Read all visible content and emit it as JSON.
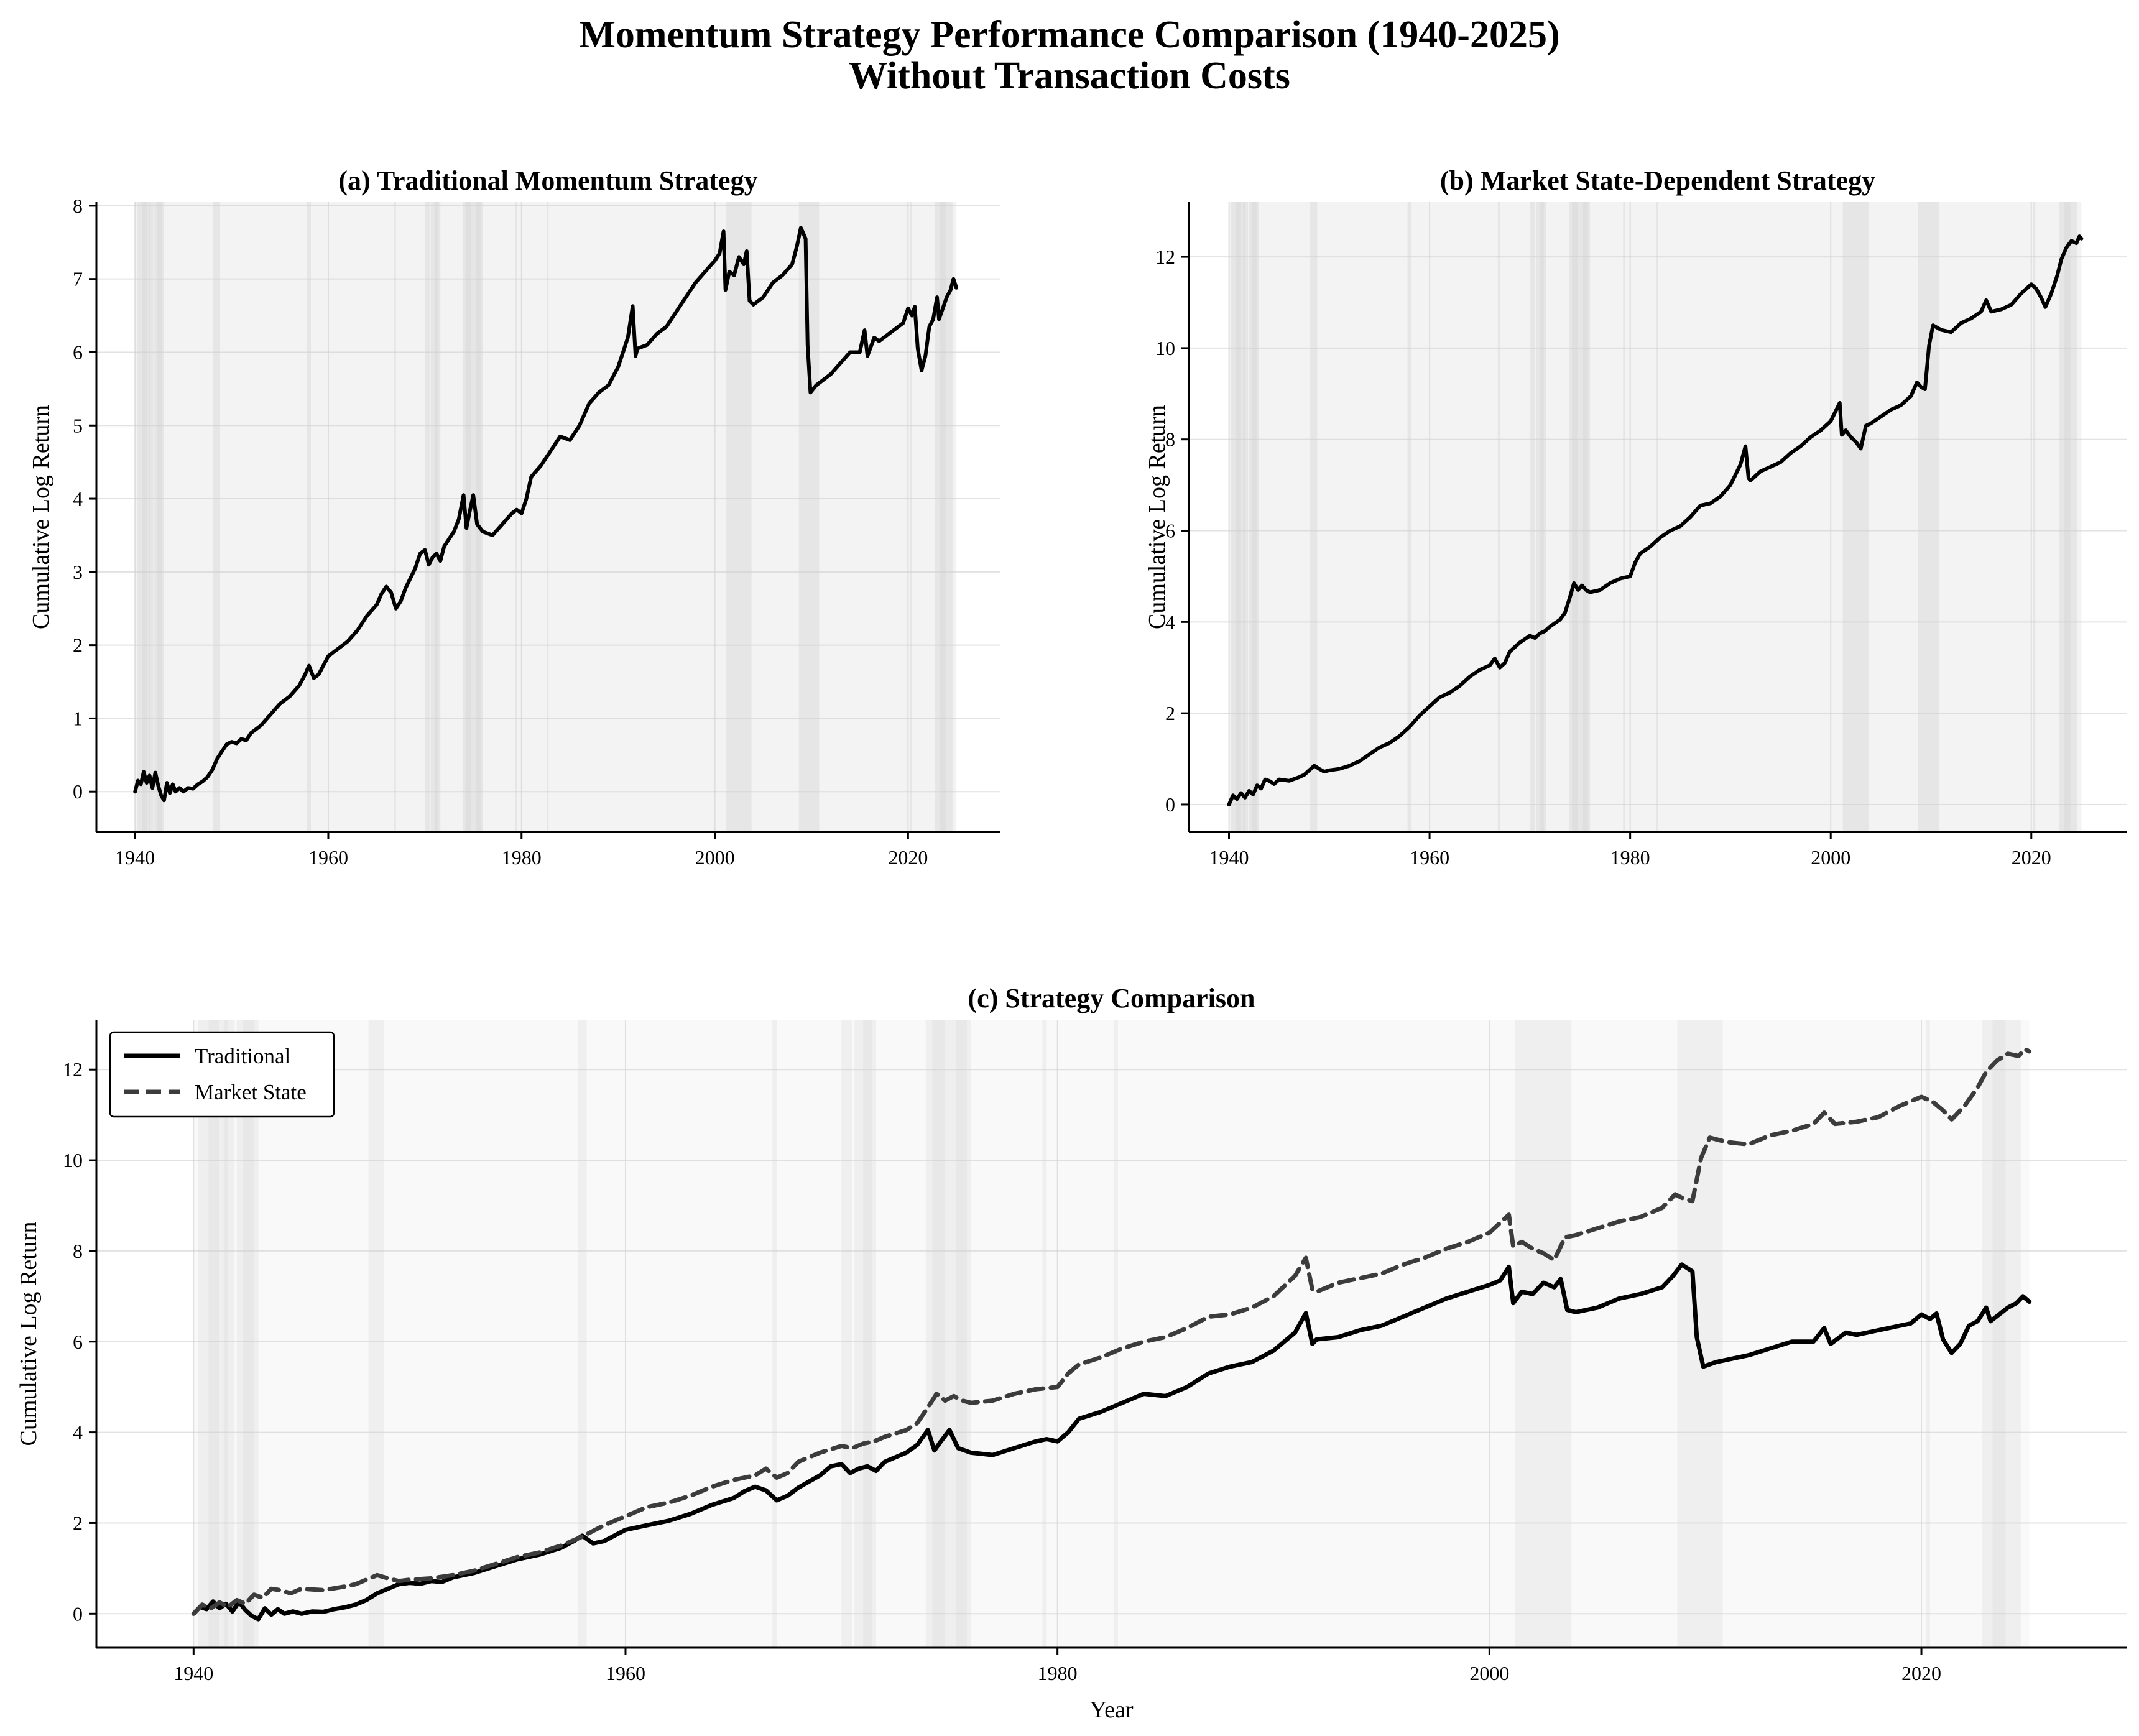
{
  "figure": {
    "title_line1": "Momentum Strategy Performance Comparison (1940-2025)",
    "title_line2": "Without Transaction Costs"
  },
  "chart_data": [
    {
      "id": "a",
      "type": "line",
      "title": "(a) Traditional Momentum Strategy",
      "xlabel": "",
      "ylabel": "Cumulative Log Return",
      "xlim": [
        1936,
        2029.5
      ],
      "ylim": [
        -0.55,
        8.05
      ],
      "xticks": [
        1940,
        1960,
        1980,
        2000,
        2020
      ],
      "yticks": [
        0,
        1,
        2,
        3,
        4,
        5,
        6,
        7,
        8
      ],
      "grid": true,
      "legend": "none",
      "series_keys": [
        "traditional"
      ],
      "colors": [
        "#000000"
      ]
    },
    {
      "id": "b",
      "type": "line",
      "title": "(b) Market State-Dependent Strategy",
      "xlabel": "",
      "ylabel": "Cumulative Log Return",
      "xlim": [
        1936,
        2029.5
      ],
      "ylim": [
        -0.6,
        13.2
      ],
      "xticks": [
        1940,
        1960,
        1980,
        2000,
        2020
      ],
      "yticks": [
        0,
        2,
        4,
        6,
        8,
        10,
        12
      ],
      "grid": true,
      "legend": "none",
      "series_keys": [
        "market_state"
      ],
      "colors": [
        "#000000"
      ]
    },
    {
      "id": "c",
      "type": "line",
      "title": "(c) Strategy Comparison",
      "xlabel": "Year",
      "ylabel": "Cumulative Log Return",
      "xlim": [
        1935.5,
        2029.5
      ],
      "ylim": [
        -0.75,
        13.1
      ],
      "xticks": [
        1940,
        1960,
        1980,
        2000,
        2020
      ],
      "yticks": [
        0,
        2,
        4,
        6,
        8,
        10,
        12
      ],
      "grid": true,
      "legend": "top-left",
      "series_keys": [
        "traditional",
        "market_state"
      ],
      "series_names": [
        "Traditional",
        "Market State"
      ],
      "colors": [
        "#000000",
        "#3c3c3c"
      ]
    }
  ],
  "series": {
    "traditional": [
      [
        1940.0,
        0.0
      ],
      [
        1940.3,
        0.15
      ],
      [
        1940.6,
        0.1
      ],
      [
        1940.9,
        0.27
      ],
      [
        1941.2,
        0.12
      ],
      [
        1941.5,
        0.22
      ],
      [
        1941.8,
        0.05
      ],
      [
        1942.1,
        0.26
      ],
      [
        1942.4,
        0.08
      ],
      [
        1942.7,
        -0.05
      ],
      [
        1943.0,
        -0.12
      ],
      [
        1943.3,
        0.12
      ],
      [
        1943.6,
        -0.02
      ],
      [
        1943.9,
        0.1
      ],
      [
        1944.2,
        0.0
      ],
      [
        1944.6,
        0.05
      ],
      [
        1945.0,
        0.0
      ],
      [
        1945.5,
        0.05
      ],
      [
        1946.0,
        0.04
      ],
      [
        1946.5,
        0.1
      ],
      [
        1947.0,
        0.14
      ],
      [
        1947.5,
        0.2
      ],
      [
        1948.0,
        0.3
      ],
      [
        1948.5,
        0.45
      ],
      [
        1949.0,
        0.55
      ],
      [
        1949.5,
        0.65
      ],
      [
        1950.0,
        0.68
      ],
      [
        1950.5,
        0.66
      ],
      [
        1951.0,
        0.72
      ],
      [
        1951.5,
        0.7
      ],
      [
        1952.0,
        0.8
      ],
      [
        1953.0,
        0.9
      ],
      [
        1954.0,
        1.05
      ],
      [
        1955.0,
        1.2
      ],
      [
        1956.0,
        1.3
      ],
      [
        1957.0,
        1.45
      ],
      [
        1957.6,
        1.6
      ],
      [
        1958.0,
        1.72
      ],
      [
        1958.5,
        1.55
      ],
      [
        1959.0,
        1.6
      ],
      [
        1960.0,
        1.85
      ],
      [
        1961.0,
        1.95
      ],
      [
        1962.0,
        2.05
      ],
      [
        1963.0,
        2.2
      ],
      [
        1964.0,
        2.4
      ],
      [
        1965.0,
        2.55
      ],
      [
        1965.5,
        2.7
      ],
      [
        1966.0,
        2.8
      ],
      [
        1966.5,
        2.72
      ],
      [
        1967.0,
        2.5
      ],
      [
        1967.5,
        2.6
      ],
      [
        1968.0,
        2.78
      ],
      [
        1969.0,
        3.05
      ],
      [
        1969.5,
        3.25
      ],
      [
        1970.0,
        3.3
      ],
      [
        1970.4,
        3.1
      ],
      [
        1970.8,
        3.2
      ],
      [
        1971.2,
        3.25
      ],
      [
        1971.6,
        3.15
      ],
      [
        1972.0,
        3.35
      ],
      [
        1972.5,
        3.45
      ],
      [
        1973.0,
        3.55
      ],
      [
        1973.5,
        3.72
      ],
      [
        1974.0,
        4.05
      ],
      [
        1974.3,
        3.6
      ],
      [
        1974.6,
        3.8
      ],
      [
        1975.0,
        4.05
      ],
      [
        1975.4,
        3.65
      ],
      [
        1976.0,
        3.55
      ],
      [
        1977.0,
        3.5
      ],
      [
        1978.0,
        3.65
      ],
      [
        1979.0,
        3.8
      ],
      [
        1979.5,
        3.85
      ],
      [
        1980.0,
        3.8
      ],
      [
        1980.5,
        4.0
      ],
      [
        1981.0,
        4.3
      ],
      [
        1982.0,
        4.45
      ],
      [
        1983.0,
        4.65
      ],
      [
        1984.0,
        4.85
      ],
      [
        1985.0,
        4.8
      ],
      [
        1986.0,
        5.0
      ],
      [
        1987.0,
        5.3
      ],
      [
        1988.0,
        5.45
      ],
      [
        1989.0,
        5.55
      ],
      [
        1990.0,
        5.8
      ],
      [
        1991.0,
        6.2
      ],
      [
        1991.5,
        6.63
      ],
      [
        1991.8,
        5.95
      ],
      [
        1992.0,
        6.05
      ],
      [
        1993.0,
        6.1
      ],
      [
        1994.0,
        6.25
      ],
      [
        1995.0,
        6.35
      ],
      [
        1996.0,
        6.55
      ],
      [
        1997.0,
        6.75
      ],
      [
        1998.0,
        6.95
      ],
      [
        1999.0,
        7.1
      ],
      [
        2000.0,
        7.25
      ],
      [
        2000.5,
        7.35
      ],
      [
        2000.9,
        7.65
      ],
      [
        2001.1,
        6.85
      ],
      [
        2001.5,
        7.1
      ],
      [
        2002.0,
        7.05
      ],
      [
        2002.5,
        7.3
      ],
      [
        2003.0,
        7.2
      ],
      [
        2003.3,
        7.38
      ],
      [
        2003.6,
        6.7
      ],
      [
        2004.0,
        6.65
      ],
      [
        2005.0,
        6.75
      ],
      [
        2006.0,
        6.95
      ],
      [
        2007.0,
        7.05
      ],
      [
        2008.0,
        7.2
      ],
      [
        2008.5,
        7.45
      ],
      [
        2008.9,
        7.7
      ],
      [
        2009.4,
        7.55
      ],
      [
        2009.6,
        6.1
      ],
      [
        2009.9,
        5.45
      ],
      [
        2010.5,
        5.55
      ],
      [
        2011.0,
        5.6
      ],
      [
        2012.0,
        5.7
      ],
      [
        2013.0,
        5.85
      ],
      [
        2014.0,
        6.0
      ],
      [
        2015.0,
        6.0
      ],
      [
        2015.5,
        6.3
      ],
      [
        2015.8,
        5.95
      ],
      [
        2016.5,
        6.2
      ],
      [
        2017.0,
        6.15
      ],
      [
        2018.0,
        6.25
      ],
      [
        2019.0,
        6.35
      ],
      [
        2019.5,
        6.4
      ],
      [
        2020.0,
        6.6
      ],
      [
        2020.4,
        6.5
      ],
      [
        2020.7,
        6.62
      ],
      [
        2021.0,
        6.05
      ],
      [
        2021.4,
        5.75
      ],
      [
        2021.8,
        5.95
      ],
      [
        2022.2,
        6.35
      ],
      [
        2022.6,
        6.45
      ],
      [
        2023.0,
        6.75
      ],
      [
        2023.2,
        6.45
      ],
      [
        2023.6,
        6.6
      ],
      [
        2024.0,
        6.75
      ],
      [
        2024.4,
        6.85
      ],
      [
        2024.7,
        7.0
      ],
      [
        2025.0,
        6.88
      ]
    ],
    "market_state": [
      [
        1940.0,
        0.0
      ],
      [
        1940.4,
        0.2
      ],
      [
        1940.8,
        0.12
      ],
      [
        1941.2,
        0.25
      ],
      [
        1941.6,
        0.15
      ],
      [
        1942.0,
        0.3
      ],
      [
        1942.4,
        0.22
      ],
      [
        1942.8,
        0.42
      ],
      [
        1943.2,
        0.35
      ],
      [
        1943.6,
        0.55
      ],
      [
        1944.0,
        0.52
      ],
      [
        1944.5,
        0.45
      ],
      [
        1945.0,
        0.55
      ],
      [
        1946.0,
        0.52
      ],
      [
        1947.0,
        0.6
      ],
      [
        1947.5,
        0.65
      ],
      [
        1948.0,
        0.75
      ],
      [
        1948.5,
        0.85
      ],
      [
        1949.0,
        0.78
      ],
      [
        1949.5,
        0.72
      ],
      [
        1950.0,
        0.75
      ],
      [
        1951.0,
        0.78
      ],
      [
        1952.0,
        0.85
      ],
      [
        1953.0,
        0.95
      ],
      [
        1954.0,
        1.1
      ],
      [
        1955.0,
        1.25
      ],
      [
        1956.0,
        1.35
      ],
      [
        1957.0,
        1.5
      ],
      [
        1958.0,
        1.7
      ],
      [
        1959.0,
        1.95
      ],
      [
        1960.0,
        2.15
      ],
      [
        1961.0,
        2.35
      ],
      [
        1962.0,
        2.45
      ],
      [
        1963.0,
        2.6
      ],
      [
        1964.0,
        2.8
      ],
      [
        1965.0,
        2.95
      ],
      [
        1966.0,
        3.05
      ],
      [
        1966.5,
        3.2
      ],
      [
        1967.0,
        3.0
      ],
      [
        1967.5,
        3.1
      ],
      [
        1968.0,
        3.35
      ],
      [
        1969.0,
        3.55
      ],
      [
        1970.0,
        3.7
      ],
      [
        1970.5,
        3.65
      ],
      [
        1971.0,
        3.75
      ],
      [
        1971.5,
        3.8
      ],
      [
        1972.0,
        3.9
      ],
      [
        1973.0,
        4.05
      ],
      [
        1973.5,
        4.2
      ],
      [
        1974.0,
        4.55
      ],
      [
        1974.4,
        4.85
      ],
      [
        1974.8,
        4.7
      ],
      [
        1975.2,
        4.8
      ],
      [
        1975.6,
        4.7
      ],
      [
        1976.0,
        4.65
      ],
      [
        1977.0,
        4.7
      ],
      [
        1978.0,
        4.85
      ],
      [
        1979.0,
        4.95
      ],
      [
        1980.0,
        5.0
      ],
      [
        1980.5,
        5.3
      ],
      [
        1981.0,
        5.5
      ],
      [
        1982.0,
        5.65
      ],
      [
        1983.0,
        5.85
      ],
      [
        1984.0,
        6.0
      ],
      [
        1985.0,
        6.1
      ],
      [
        1986.0,
        6.3
      ],
      [
        1987.0,
        6.55
      ],
      [
        1988.0,
        6.6
      ],
      [
        1989.0,
        6.75
      ],
      [
        1990.0,
        7.0
      ],
      [
        1991.0,
        7.45
      ],
      [
        1991.5,
        7.85
      ],
      [
        1991.8,
        7.15
      ],
      [
        1992.0,
        7.1
      ],
      [
        1993.0,
        7.3
      ],
      [
        1994.0,
        7.4
      ],
      [
        1995.0,
        7.5
      ],
      [
        1996.0,
        7.7
      ],
      [
        1997.0,
        7.85
      ],
      [
        1998.0,
        8.05
      ],
      [
        1999.0,
        8.2
      ],
      [
        2000.0,
        8.4
      ],
      [
        2000.9,
        8.8
      ],
      [
        2001.1,
        8.1
      ],
      [
        2001.5,
        8.2
      ],
      [
        2002.0,
        8.05
      ],
      [
        2002.5,
        7.95
      ],
      [
        2003.0,
        7.8
      ],
      [
        2003.5,
        8.3
      ],
      [
        2004.0,
        8.35
      ],
      [
        2005.0,
        8.5
      ],
      [
        2006.0,
        8.65
      ],
      [
        2007.0,
        8.75
      ],
      [
        2008.0,
        8.95
      ],
      [
        2008.6,
        9.25
      ],
      [
        2009.0,
        9.15
      ],
      [
        2009.4,
        9.1
      ],
      [
        2009.8,
        10.05
      ],
      [
        2010.2,
        10.5
      ],
      [
        2011.0,
        10.4
      ],
      [
        2012.0,
        10.35
      ],
      [
        2013.0,
        10.55
      ],
      [
        2014.0,
        10.65
      ],
      [
        2015.0,
        10.8
      ],
      [
        2015.5,
        11.05
      ],
      [
        2016.0,
        10.8
      ],
      [
        2017.0,
        10.85
      ],
      [
        2018.0,
        10.95
      ],
      [
        2019.0,
        11.2
      ],
      [
        2019.5,
        11.3
      ],
      [
        2020.0,
        11.4
      ],
      [
        2020.5,
        11.3
      ],
      [
        2021.0,
        11.1
      ],
      [
        2021.4,
        10.9
      ],
      [
        2022.0,
        11.2
      ],
      [
        2022.6,
        11.6
      ],
      [
        2023.0,
        11.95
      ],
      [
        2023.5,
        12.2
      ],
      [
        2024.0,
        12.35
      ],
      [
        2024.5,
        12.3
      ],
      [
        2024.8,
        12.45
      ],
      [
        2025.0,
        12.4
      ]
    ],
    "shaded_periods": [
      [
        1940.2,
        1941.6
      ],
      [
        1940.7,
        1941.2
      ],
      [
        1941.4,
        1941.9
      ],
      [
        1942.0,
        1943.0
      ],
      [
        1942.3,
        1942.8
      ],
      [
        1948.1,
        1948.8
      ],
      [
        1957.8,
        1958.2
      ],
      [
        1966.8,
        1967.0
      ],
      [
        1970.0,
        1970.5
      ],
      [
        1970.6,
        1971.4
      ],
      [
        1971.0,
        1971.6
      ],
      [
        1973.9,
        1976.0
      ],
      [
        1974.2,
        1974.8
      ],
      [
        1975.3,
        1975.8
      ],
      [
        1979.3,
        1979.5
      ],
      [
        1982.6,
        1982.8
      ],
      [
        2001.2,
        2003.8
      ],
      [
        2008.7,
        2010.8
      ],
      [
        2020.2,
        2020.4
      ],
      [
        2022.8,
        2024.6
      ],
      [
        2023.3,
        2023.9
      ]
    ]
  }
}
